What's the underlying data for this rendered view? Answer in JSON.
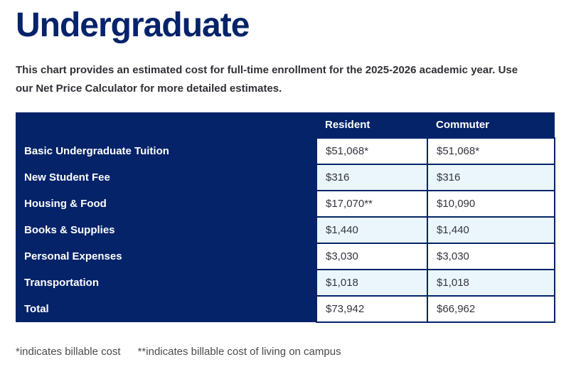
{
  "page": {
    "title": "Undergraduate"
  },
  "intro": {
    "line1": "This chart provides an estimated cost for full-time enrollment for the 2025-2026 academic year. Use",
    "line2_before": "our ",
    "link": "Net Price Calculator",
    "line2_after": " for more detailed estimates."
  },
  "table": {
    "columns": [
      "Resident",
      "Commuter"
    ],
    "rows": [
      {
        "label": "Basic Undergraduate Tuition",
        "resident": "$51,068*",
        "commuter": "$51,068*"
      },
      {
        "label": "New Student Fee",
        "resident": "$316",
        "commuter": "$316"
      },
      {
        "label": "Housing & Food",
        "resident": "$17,070**",
        "commuter": "$10,090"
      },
      {
        "label": "Books & Supplies",
        "resident": "$1,440",
        "commuter": "$1,440"
      },
      {
        "label": "Personal Expenses",
        "resident": "$3,030",
        "commuter": "$3,030"
      },
      {
        "label": "Transportation",
        "resident": "$1,018",
        "commuter": "$1,018"
      },
      {
        "label": "Total",
        "resident": "$73,942",
        "commuter": "$66,962"
      }
    ]
  },
  "footnotes": {
    "single_asterisk": "*indicates billable cost",
    "double_asterisk": "**indicates billable cost of living on campus"
  },
  "colors": {
    "navy": "#042369",
    "row_stripe": "#eaf6fb",
    "value_text": "#35353f"
  }
}
